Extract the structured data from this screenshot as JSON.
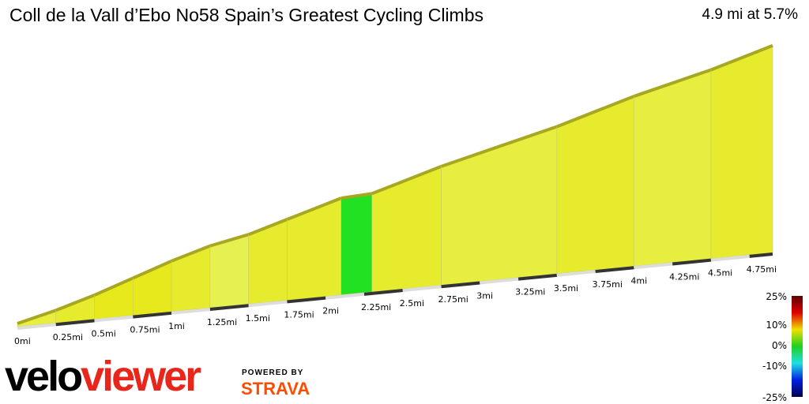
{
  "header": {
    "title": "Coll de la Vall d’Ebo No58 Spain’s Greatest Cycling Climbs",
    "summary": "4.9 mi at 5.7%"
  },
  "chart_data": {
    "type": "area",
    "title": "Coll de la Vall d’Ebo No58 Spain’s Greatest Cycling Climbs",
    "distance_mi": 4.9,
    "avg_gradient_pct": 5.7,
    "x_ticks": [
      "0mi",
      "0.25mi",
      "0.5mi",
      "0.75mi",
      "1mi",
      "1.25mi",
      "1.5mi",
      "1.75mi",
      "2mi",
      "2.25mi",
      "2.5mi",
      "2.75mi",
      "3mi",
      "3.25mi",
      "3.5mi",
      "3.75mi",
      "4mi",
      "4.25mi",
      "4.5mi",
      "4.75mi"
    ],
    "segments": [
      {
        "from": 0.0,
        "to": 0.25,
        "gradient": 5
      },
      {
        "from": 0.25,
        "to": 0.5,
        "gradient": 6
      },
      {
        "from": 0.5,
        "to": 0.75,
        "gradient": 7
      },
      {
        "from": 0.75,
        "to": 1.0,
        "gradient": 7
      },
      {
        "from": 1.0,
        "to": 1.25,
        "gradient": 6
      },
      {
        "from": 1.25,
        "to": 1.5,
        "gradient": 4
      },
      {
        "from": 1.5,
        "to": 1.75,
        "gradient": 6
      },
      {
        "from": 1.75,
        "to": 2.1,
        "gradient": 6
      },
      {
        "from": 2.1,
        "to": 2.3,
        "gradient": 1
      },
      {
        "from": 2.3,
        "to": 2.75,
        "gradient": 6
      },
      {
        "from": 2.75,
        "to": 3.5,
        "gradient": 5
      },
      {
        "from": 3.5,
        "to": 4.0,
        "gradient": 6
      },
      {
        "from": 4.0,
        "to": 4.5,
        "gradient": 5
      },
      {
        "from": 4.5,
        "to": 4.9,
        "gradient": 6
      }
    ],
    "legend": {
      "ticks": [
        "25%",
        "10%",
        "0%",
        "-10%",
        "-25%"
      ],
      "colors": [
        "#5a0000",
        "#e00000",
        "#f0e000",
        "#20d020",
        "#20e0e0",
        "#0020e0",
        "#000050"
      ]
    }
  },
  "branding": {
    "logo_left": "velo",
    "logo_right": "viewer",
    "powered": "POWERED BY",
    "strava": "STRAVA"
  }
}
